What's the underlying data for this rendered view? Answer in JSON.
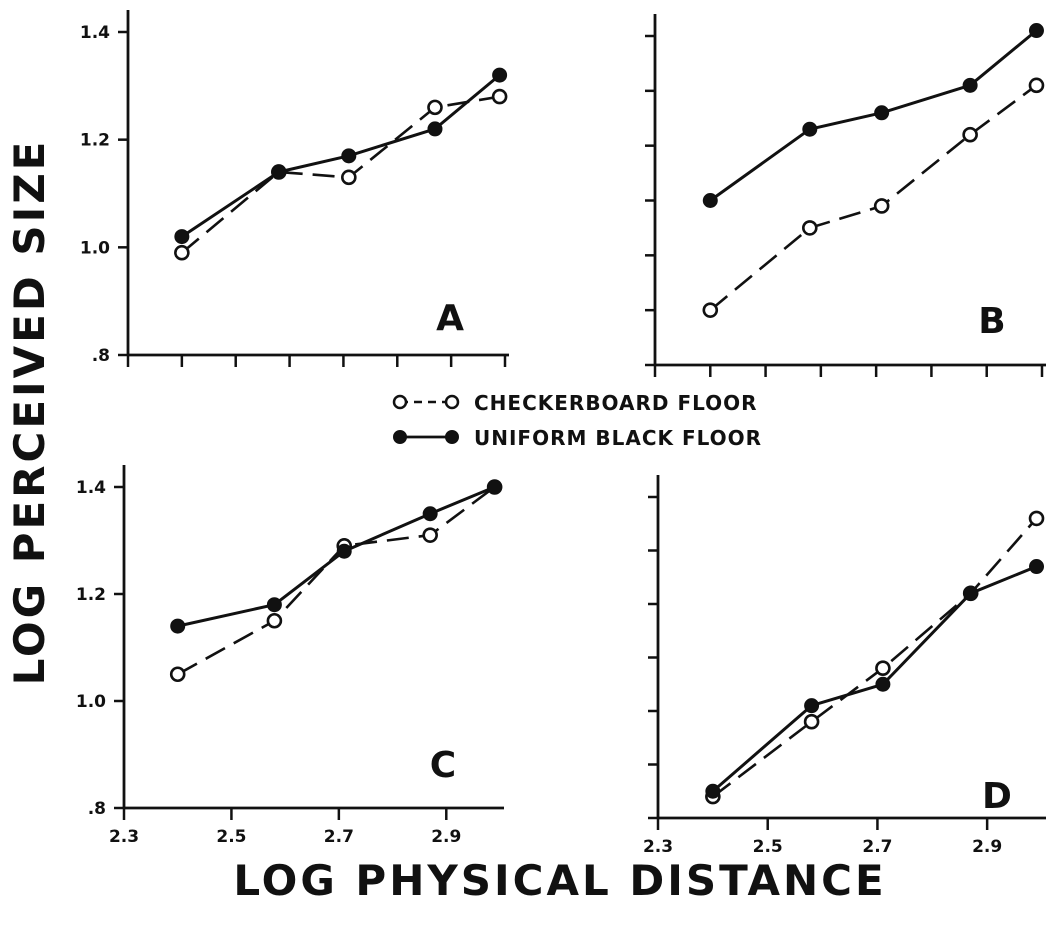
{
  "figure": {
    "ylabel": "LOG PERCEIVED SIZE",
    "xlabel": "LOG PHYSICAL DISTANCE",
    "legend": [
      {
        "label": "CHECKERBOARD FLOOR",
        "marker": "open-circle",
        "line": "dashed"
      },
      {
        "label": "UNIFORM BLACK FLOOR",
        "marker": "filled-circle",
        "line": "solid"
      }
    ]
  },
  "chart_data": [
    {
      "type": "line",
      "panel": "A",
      "title": "",
      "xlabel": "LOG PHYSICAL DISTANCE",
      "ylabel": "LOG PERCEIVED SIZE",
      "xlim": [
        2.3,
        3.0
      ],
      "ylim": [
        0.8,
        1.4
      ],
      "yticks": [
        0.8,
        1.0,
        1.2,
        1.4
      ],
      "ytick_labels": [
        ".8",
        "1.0",
        "1.2",
        "1.4"
      ],
      "xticks": [
        2.3,
        2.4,
        2.5,
        2.6,
        2.7,
        2.8,
        2.9,
        3.0
      ],
      "xtick_labels": [],
      "series": [
        {
          "name": "CHECKERBOARD FLOOR",
          "x": [
            2.4,
            2.58,
            2.71,
            2.87,
            2.99
          ],
          "values": [
            0.99,
            1.14,
            1.13,
            1.26,
            1.28
          ]
        },
        {
          "name": "UNIFORM BLACK FLOOR",
          "x": [
            2.4,
            2.58,
            2.71,
            2.87,
            2.99
          ],
          "values": [
            1.02,
            1.14,
            1.17,
            1.22,
            1.32
          ]
        }
      ]
    },
    {
      "type": "line",
      "panel": "B",
      "title": "",
      "xlabel": "LOG PHYSICAL DISTANCE",
      "ylabel": "LOG PERCEIVED SIZE",
      "xlim": [
        2.3,
        3.0
      ],
      "ylim": [
        0.8,
        1.4
      ],
      "yticks": [
        0.8,
        0.9,
        1.0,
        1.1,
        1.2,
        1.3,
        1.4
      ],
      "ytick_labels": [],
      "xticks": [
        2.3,
        2.4,
        2.5,
        2.6,
        2.7,
        2.8,
        2.9,
        3.0
      ],
      "xtick_labels": [],
      "series": [
        {
          "name": "CHECKERBOARD FLOOR",
          "x": [
            2.4,
            2.58,
            2.71,
            2.87,
            2.99
          ],
          "values": [
            0.9,
            1.05,
            1.09,
            1.22,
            1.31
          ]
        },
        {
          "name": "UNIFORM BLACK FLOOR",
          "x": [
            2.4,
            2.58,
            2.71,
            2.87,
            2.99
          ],
          "values": [
            1.1,
            1.23,
            1.26,
            1.31,
            1.41
          ]
        }
      ]
    },
    {
      "type": "line",
      "panel": "C",
      "title": "",
      "xlabel": "LOG PHYSICAL DISTANCE",
      "ylabel": "LOG PERCEIVED SIZE",
      "xlim": [
        2.3,
        3.0
      ],
      "ylim": [
        0.8,
        1.4
      ],
      "yticks": [
        0.8,
        1.0,
        1.2,
        1.4
      ],
      "ytick_labels": [
        ".8",
        "1.0",
        "1.2",
        "1.4"
      ],
      "xticks": [
        2.3,
        2.5,
        2.7,
        2.9
      ],
      "xtick_labels": [
        "2.3",
        "2.5",
        "2.7",
        "2.9"
      ],
      "series": [
        {
          "name": "CHECKERBOARD FLOOR",
          "x": [
            2.4,
            2.58,
            2.71,
            2.87,
            2.99
          ],
          "values": [
            1.05,
            1.15,
            1.29,
            1.31,
            1.4
          ]
        },
        {
          "name": "UNIFORM BLACK FLOOR",
          "x": [
            2.4,
            2.58,
            2.71,
            2.87,
            2.99
          ],
          "values": [
            1.14,
            1.18,
            1.28,
            1.35,
            1.4
          ]
        }
      ]
    },
    {
      "type": "line",
      "panel": "D",
      "title": "",
      "xlabel": "LOG PHYSICAL DISTANCE",
      "ylabel": "LOG PERCEIVED SIZE",
      "xlim": [
        2.3,
        3.0
      ],
      "ylim": [
        0.8,
        1.4
      ],
      "yticks": [
        0.8,
        0.9,
        1.0,
        1.1,
        1.2,
        1.3,
        1.4
      ],
      "ytick_labels": [],
      "xticks": [
        2.3,
        2.5,
        2.7,
        2.9
      ],
      "xtick_labels": [
        "2.3",
        "2.5",
        "2.7",
        "2.9"
      ],
      "series": [
        {
          "name": "CHECKERBOARD FLOOR",
          "x": [
            2.4,
            2.58,
            2.71,
            2.87,
            2.99
          ],
          "values": [
            0.84,
            0.98,
            1.08,
            1.22,
            1.36
          ]
        },
        {
          "name": "UNIFORM BLACK FLOOR",
          "x": [
            2.4,
            2.58,
            2.71,
            2.87,
            2.99
          ],
          "values": [
            0.85,
            1.01,
            1.05,
            1.22,
            1.27
          ]
        }
      ]
    }
  ]
}
